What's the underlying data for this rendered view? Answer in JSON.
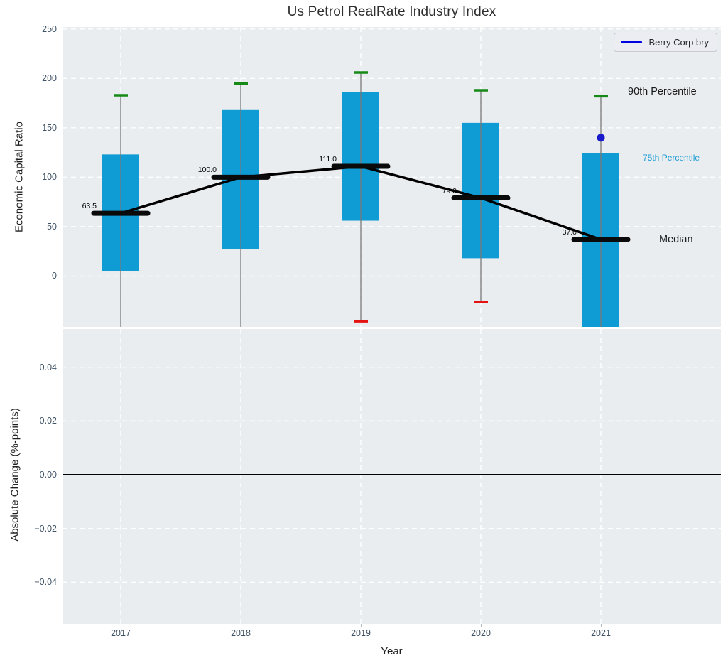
{
  "title": "Us Petrol RealRate Industry Index",
  "xlabel": "Year",
  "legend": {
    "label": "Berry Corp bry"
  },
  "annotations": {
    "p90": "90th Percentile",
    "p75": "75th Percentile",
    "median": "Median"
  },
  "top_axes": {
    "ylabel": "Economic Capital Ratio",
    "yticks": [
      {
        "v": 0,
        "label": "0"
      },
      {
        "v": 50,
        "label": "50"
      },
      {
        "v": 100,
        "label": "100"
      },
      {
        "v": 150,
        "label": "150"
      },
      {
        "v": 200,
        "label": "200"
      },
      {
        "v": 250,
        "label": "250"
      }
    ],
    "ylim": [
      -51.5,
      252
    ]
  },
  "bottom_axes": {
    "ylabel": "Absolute Change (%-points)",
    "yticks": [
      {
        "v": 0.04,
        "label": "0.04"
      },
      {
        "v": 0.02,
        "label": "0.02"
      },
      {
        "v": 0.0,
        "label": "0.00"
      },
      {
        "v": -0.02,
        "label": "−0.02"
      },
      {
        "v": -0.04,
        "label": "−0.04"
      }
    ],
    "ylim": [
      -0.0555,
      0.0542
    ],
    "zero_line_at": 0.0
  },
  "chart_data": {
    "type": "boxplot-with-median-line",
    "title": "Us Petrol RealRate Industry Index",
    "xlabel": "Year",
    "ylabel_top": "Economic Capital Ratio",
    "ylabel_bottom": "Absolute Change (%-points)",
    "x": [
      2017,
      2018,
      2019,
      2020,
      2021
    ],
    "x_labels": [
      "2017",
      "2018",
      "2019",
      "2020",
      "2021"
    ],
    "boxes": [
      {
        "year": 2017,
        "p90": 183,
        "q3": 123,
        "median": 63.5,
        "q1": 5,
        "low": null,
        "median_label": "63.5"
      },
      {
        "year": 2018,
        "p90": 195,
        "q3": 168,
        "median": 100.0,
        "q1": 27,
        "low": null,
        "median_label": "100.0"
      },
      {
        "year": 2019,
        "p90": 206,
        "q3": 186,
        "median": 111.0,
        "q1": 56,
        "low": -46,
        "median_label": "111.0"
      },
      {
        "year": 2020,
        "p90": 188,
        "q3": 155,
        "median": 79.0,
        "q1": 18,
        "low": -26,
        "median_label": "79.0"
      },
      {
        "year": 2021,
        "p90": 182,
        "q3": 124,
        "median": 37.0,
        "q1": null,
        "low": null,
        "median_label": "37.0"
      }
    ],
    "median_line_values": [
      63.5,
      100.0,
      111.0,
      79.0,
      37.0
    ],
    "series_point": {
      "name": "Berry Corp bry",
      "year": 2021,
      "value": 140
    },
    "ylim_top": [
      -51.5,
      252
    ],
    "ylim_bottom": [
      -0.0555,
      0.0542
    ],
    "grid": true,
    "legend_position": "upper right",
    "colors": {
      "box": "#0f9bd4",
      "high_cap": "#168a16",
      "low_cap": "#e51212",
      "median_bar": "#0a0a0a",
      "median_line": "#000000",
      "whisker": "#787878",
      "dot": "#1a1acd",
      "legend_line": "#0000e0",
      "annotation_75": "#1b9cd4",
      "axes_bg": "#e9edf0",
      "grid_line": "#ffffff"
    }
  }
}
